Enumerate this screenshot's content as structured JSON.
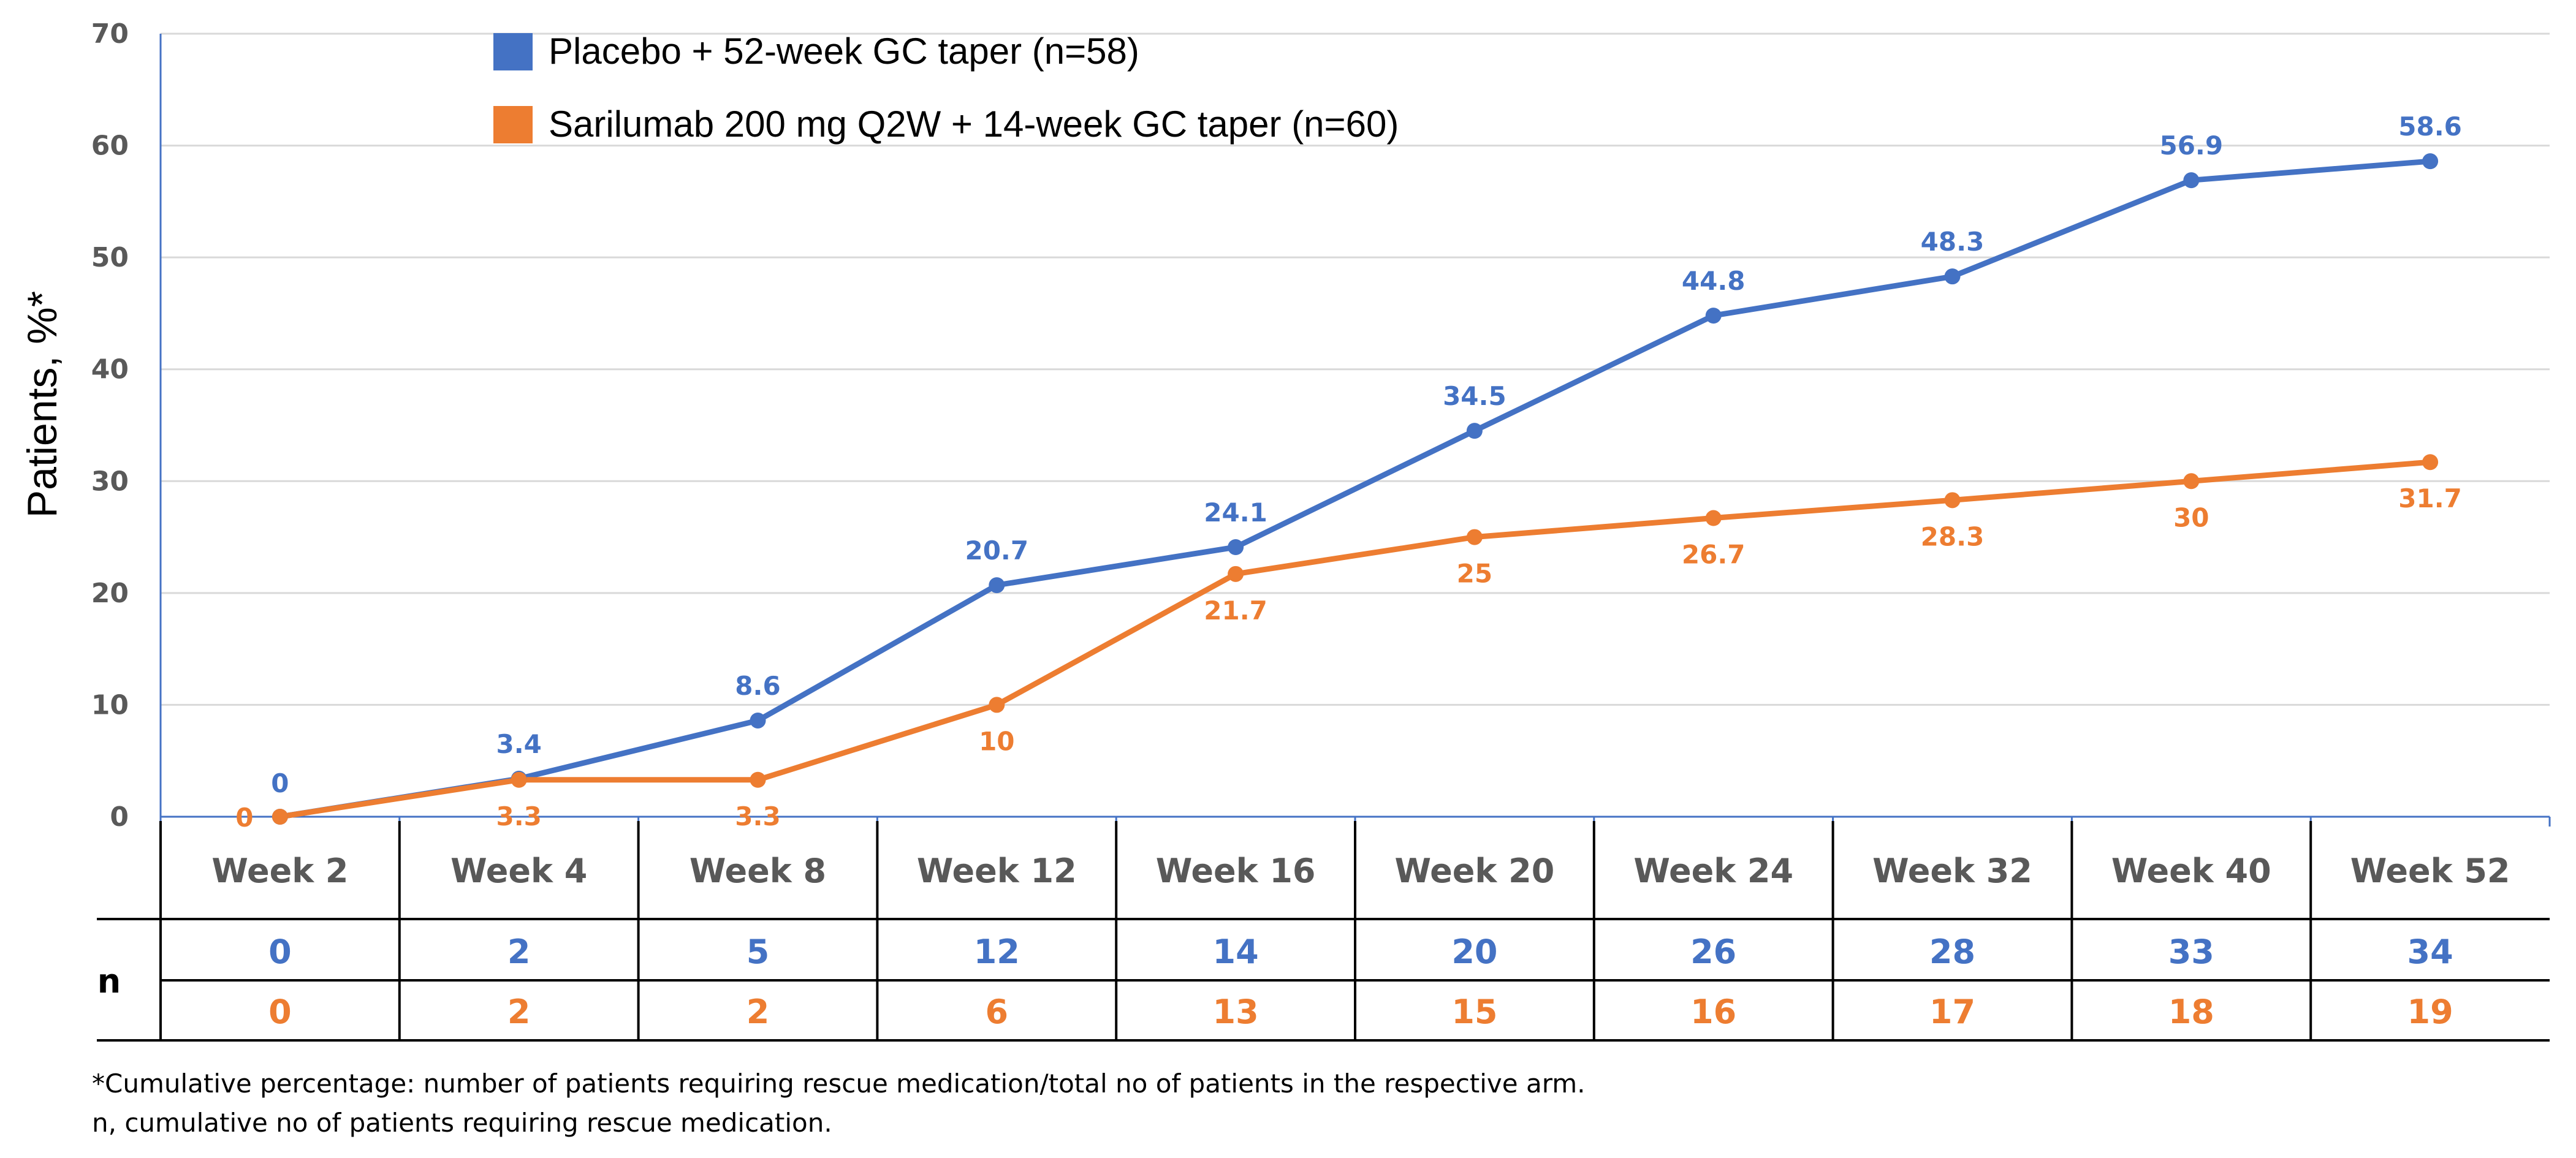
{
  "colors": {
    "placebo": "#4472C4",
    "sarilumab": "#ED7D31",
    "grid": "#D9D9D9",
    "axis": "#4472C4",
    "text": "#595959"
  },
  "chart_data": {
    "type": "line",
    "ylabel": "Patients, %*",
    "ylim": [
      0,
      70
    ],
    "yticks": [
      "0",
      "10",
      "20",
      "30",
      "40",
      "50",
      "60",
      "70"
    ],
    "categories": [
      "Week 2",
      "Week 4",
      "Week 8",
      "Week 12",
      "Week 16",
      "Week 20",
      "Week 24",
      "Week 32",
      "Week 40",
      "Week 52"
    ],
    "grid": true,
    "legend_position": "top-left",
    "series": [
      {
        "name": "Placebo + 52-week GC taper (n=58)",
        "values": [
          0,
          3.4,
          8.6,
          20.7,
          24.1,
          34.5,
          44.8,
          48.3,
          56.9,
          58.6
        ],
        "labels": [
          "0",
          "3.4",
          "8.6",
          "20.7",
          "24.1",
          "34.5",
          "44.8",
          "48.3",
          "56.9",
          "58.6"
        ]
      },
      {
        "name": "Sarilumab 200 mg Q2W + 14-week GC taper (n=60)",
        "values": [
          0,
          3.3,
          3.3,
          10,
          21.7,
          25,
          26.7,
          28.3,
          30,
          31.7
        ],
        "labels": [
          "0",
          "3.3",
          "3.3",
          "10",
          "21.7",
          "25",
          "26.7",
          "28.3",
          "30",
          "31.7"
        ]
      }
    ]
  },
  "n_table": {
    "row_label": "n",
    "placebo": [
      "0",
      "2",
      "5",
      "12",
      "14",
      "20",
      "26",
      "28",
      "33",
      "34"
    ],
    "sarilumab": [
      "0",
      "2",
      "2",
      "6",
      "13",
      "15",
      "16",
      "17",
      "18",
      "19"
    ]
  },
  "footnotes": [
    "*Cumulative percentage: number of patients requiring rescue medication/total no of patients in the respective arm.",
    "n, cumulative no of patients requiring rescue medication."
  ]
}
